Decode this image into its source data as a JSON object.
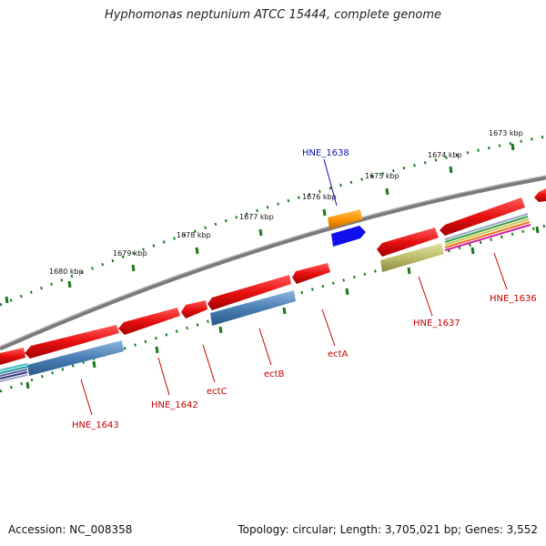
{
  "title": "Hyphomonas neptunium ATCC 15444, complete genome",
  "footer": {
    "accession": "Accession: NC_008358",
    "summary": "Topology: circular; Length: 3,705,021 bp; Genes: 3,552"
  },
  "scale_labels": [
    "1673 kbp",
    "1674 kbp",
    "1675 kbp",
    "1676 kbp",
    "1677 kbp",
    "1678 kbp",
    "1679 kbp",
    "1680 kbp"
  ],
  "gene_labels": {
    "hne1638": "HNE_1638",
    "hne1636": "HNE_1636",
    "hne1637": "HNE_1637",
    "ectA": "ectA",
    "ectB": "ectB",
    "ectC": "ectC",
    "hne1642": "HNE_1642",
    "hne1643": "HNE_1643"
  },
  "colors": {
    "gene": "#e81010",
    "highlight_label": "#1010b0",
    "label": "#c80000",
    "cds_blue": "#4a7fb5",
    "tick_green": "#1a7a1a",
    "backbone": "#7a7a7a"
  }
}
